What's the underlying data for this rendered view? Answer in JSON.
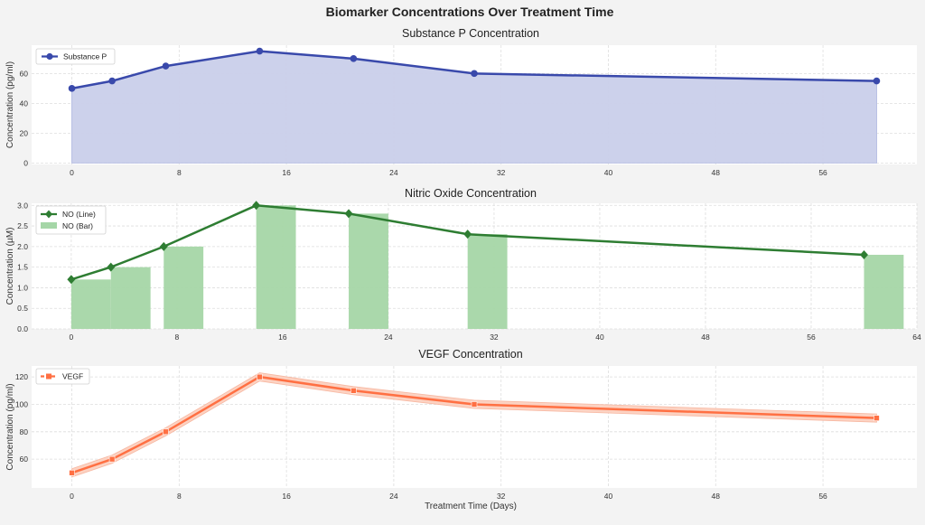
{
  "figure": {
    "title": "Biomarker Concentrations Over Treatment Time"
  },
  "chart_data": [
    {
      "type": "area",
      "title": "Substance P Concentration",
      "xlabel": "",
      "ylabel": "Concentration (pg/ml)",
      "x": [
        0,
        3,
        7,
        14,
        21,
        30,
        60
      ],
      "series": [
        {
          "name": "Substance P",
          "values": [
            50,
            55,
            65,
            75,
            70,
            60,
            55
          ],
          "color": "#3949ab",
          "fill": "#c9cfea",
          "marker": "circle"
        }
      ],
      "xlim": [
        -3,
        63
      ],
      "ylim": [
        -1,
        79
      ],
      "xticks": [
        "0",
        "8",
        "16",
        "24",
        "32",
        "40",
        "48",
        "56"
      ],
      "xtick_values": [
        0,
        8,
        16,
        24,
        32,
        40,
        48,
        56
      ],
      "yticks": [
        "0",
        "20",
        "40",
        "60"
      ],
      "ytick_values": [
        0,
        20,
        40,
        60
      ],
      "grid": true,
      "legend": "upper-left"
    },
    {
      "type": "bar",
      "title": "Nitric Oxide Concentration",
      "xlabel": "",
      "ylabel": "Concentration (µM)",
      "x": [
        0,
        3,
        7,
        14,
        21,
        30,
        60
      ],
      "series": [
        {
          "name": "NO (Line)",
          "type": "line",
          "values": [
            1.2,
            1.5,
            2.0,
            3.0,
            2.8,
            2.3,
            1.8
          ],
          "color": "#2e7d32",
          "marker": "diamond"
        },
        {
          "name": "NO (Bar)",
          "type": "bar",
          "values": [
            1.2,
            1.5,
            2.0,
            3.0,
            2.8,
            2.3,
            1.8
          ],
          "color": "#a5d6a7",
          "bar_width": 3
        }
      ],
      "xlim": [
        -3,
        64
      ],
      "ylim": [
        0,
        3.05
      ],
      "xticks": [
        "0",
        "8",
        "16",
        "24",
        "32",
        "40",
        "48",
        "56",
        "64"
      ],
      "xtick_values": [
        0,
        8,
        16,
        24,
        32,
        40,
        48,
        56,
        64
      ],
      "yticks": [
        "0.0",
        "0.5",
        "1.0",
        "1.5",
        "2.0",
        "2.5",
        "3.0"
      ],
      "ytick_values": [
        0,
        0.5,
        1.0,
        1.5,
        2.0,
        2.5,
        3.0
      ],
      "grid": true,
      "legend": "upper-left"
    },
    {
      "type": "line",
      "title": "VEGF Concentration",
      "xlabel": "Treatment Time (Days)",
      "ylabel": "Concentration (pg/ml)",
      "x": [
        0,
        3,
        7,
        14,
        21,
        30,
        60
      ],
      "series": [
        {
          "name": "VEGF",
          "values": [
            50,
            60,
            80,
            120,
            110,
            100,
            90
          ],
          "band": 3,
          "color": "#ff7043",
          "fill": "#fcd0bf",
          "marker": "square",
          "dashed": true
        }
      ],
      "xlim": [
        -3,
        63
      ],
      "ylim": [
        39,
        128
      ],
      "xticks": [
        "0",
        "8",
        "16",
        "24",
        "32",
        "40",
        "48",
        "56"
      ],
      "xtick_values": [
        0,
        8,
        16,
        24,
        32,
        40,
        48,
        56
      ],
      "yticks": [
        "60",
        "80",
        "100",
        "120"
      ],
      "ytick_values": [
        60,
        80,
        100,
        120
      ],
      "grid": true,
      "legend": "upper-left"
    }
  ]
}
